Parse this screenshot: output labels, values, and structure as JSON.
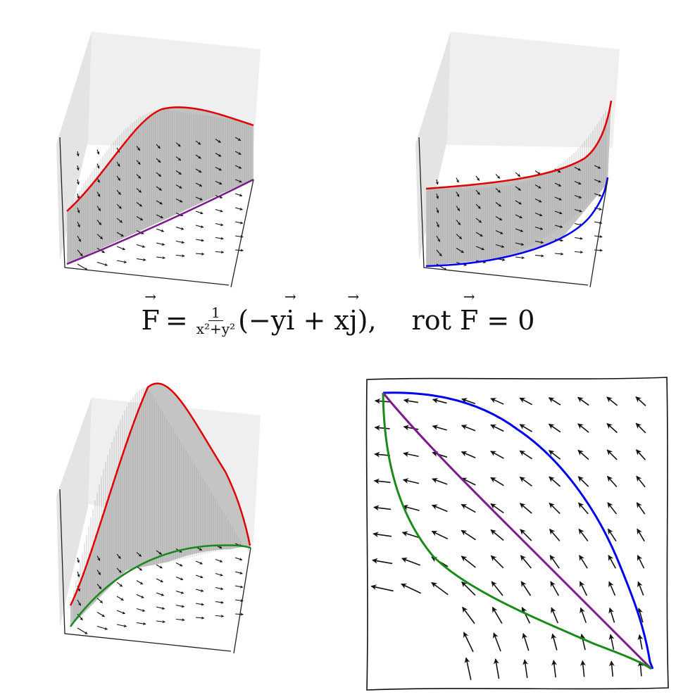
{
  "formula": {
    "F": "F",
    "eq": "=",
    "num": "1",
    "den": "x²+y²",
    "open": "(−y",
    "i": "i",
    "plus": " + x",
    "j": "j",
    "close": "),",
    "rot": "rot ",
    "F2": "F",
    "eq2": " = 0"
  },
  "colors": {
    "red": "#e00000",
    "purple": "#7a1a8c",
    "blue": "#0000ee",
    "green": "#1a8a1a",
    "arrow": "#111111",
    "surface": "#bdbdbd",
    "box": "#ececec"
  },
  "curves": {
    "top_left": [
      "red",
      "purple"
    ],
    "top_right": [
      "red",
      "blue"
    ],
    "bottom_left": [
      "red",
      "green"
    ],
    "quiver": [
      "blue",
      "purple",
      "green"
    ]
  }
}
